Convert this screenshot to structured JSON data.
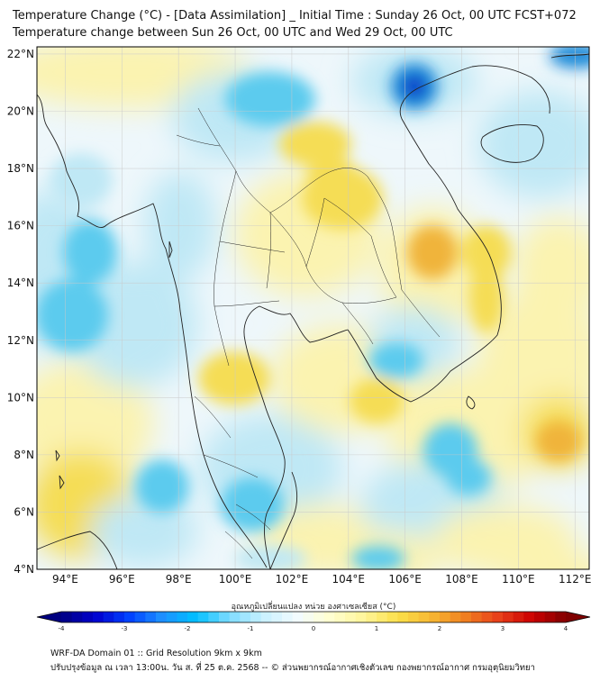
{
  "header": {
    "title": "Temperature Change (°C) - [Data Assimilation] _ Initial Time : Sunday 26 Oct, 00 UTC FCST+072",
    "subtitle": "Temperature change between Sun 26 Oct, 00 UTC and Wed 29 Oct, 00 UTC"
  },
  "map": {
    "lat_labels": [
      "22°N",
      "20°N",
      "18°N",
      "16°N",
      "14°N",
      "12°N",
      "10°N",
      "8°N",
      "6°N",
      "4°N"
    ],
    "lon_labels": [
      "94°E",
      "96°E",
      "98°E",
      "100°E",
      "102°E",
      "104°E",
      "106°E",
      "108°E",
      "110°E",
      "112°E"
    ],
    "lat_range": [
      4,
      22.25
    ],
    "lon_range": [
      93,
      112.5
    ],
    "colors": {
      "ocean_base": "#eef7fb",
      "warm_light": "#fbf3b0",
      "warm_mid": "#f5dd55",
      "warm_strong": "#f0b43a",
      "cool_light": "#bfe8f5",
      "cool_mid": "#5ccbee",
      "cool_strong": "#1f8ad8",
      "cool_deep": "#0b2fc9",
      "coast": "#222222"
    }
  },
  "colorbar": {
    "title": "อุณหภูมิเปลี่ยนแปลง หน่วย องศาเซลเซียส (°C)",
    "ticks": [
      "-4",
      "-3",
      "-2",
      "-1",
      "0",
      "1",
      "2",
      "3",
      "4"
    ],
    "min": -4,
    "max": 4,
    "colors": [
      "#000080",
      "#0000cd",
      "#0040ff",
      "#1e90ff",
      "#00bfff",
      "#7fdcff",
      "#c8f0ff",
      "#f2fbff",
      "#ffffd0",
      "#fff59a",
      "#fbe04a",
      "#f7b733",
      "#f08020",
      "#e8401a",
      "#cc0000",
      "#800000"
    ]
  },
  "footer": {
    "line1": "WRF-DA Domain 01 :: Grid Resolution 9km x 9km",
    "line2": "ปรับปรุงข้อมูล ณ เวลา 13:00น. วัน ส. ที่ 25 ต.ค. 2568 -- © ส่วนพยากรณ์อากาศเชิงตัวเลข กองพยากรณ์อากาศ กรมอุตุนิยมวิทยา"
  }
}
